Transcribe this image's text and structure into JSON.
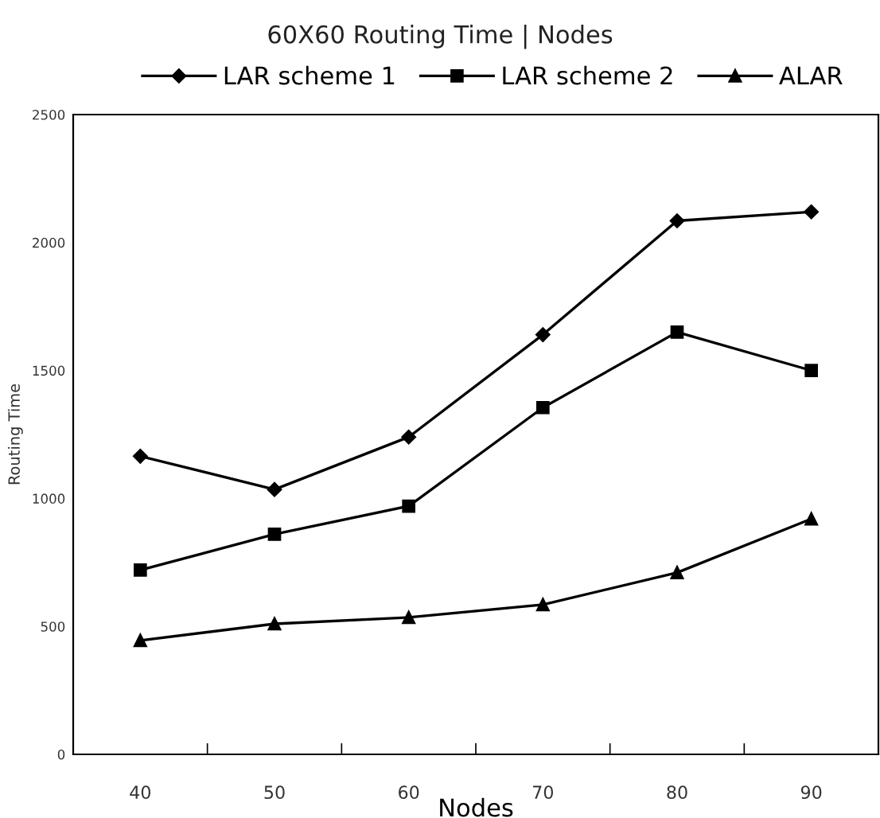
{
  "chart_data": {
    "type": "line",
    "title": "60X60 Routing Time | Nodes",
    "xlabel": "Nodes",
    "ylabel": "Routing Time",
    "categories": [
      "40",
      "50",
      "60",
      "70",
      "80",
      "90"
    ],
    "series": [
      {
        "name": "LAR scheme 1",
        "color": "#000000",
        "marker": "diamond",
        "values": [
          1165,
          1035,
          1240,
          1640,
          2085,
          2120
        ]
      },
      {
        "name": "LAR scheme 2",
        "color": "#000000",
        "marker": "square",
        "values": [
          720,
          860,
          970,
          1355,
          1650,
          1500
        ]
      },
      {
        "name": "ALAR",
        "color": "#000000",
        "marker": "triangle",
        "values": [
          445,
          510,
          535,
          585,
          710,
          920
        ]
      }
    ],
    "ylim": [
      0,
      2500
    ],
    "yticks": [
      0,
      500,
      1000,
      1500,
      2000,
      2500
    ],
    "grid": false,
    "legend": "top",
    "line_style": "solid"
  }
}
